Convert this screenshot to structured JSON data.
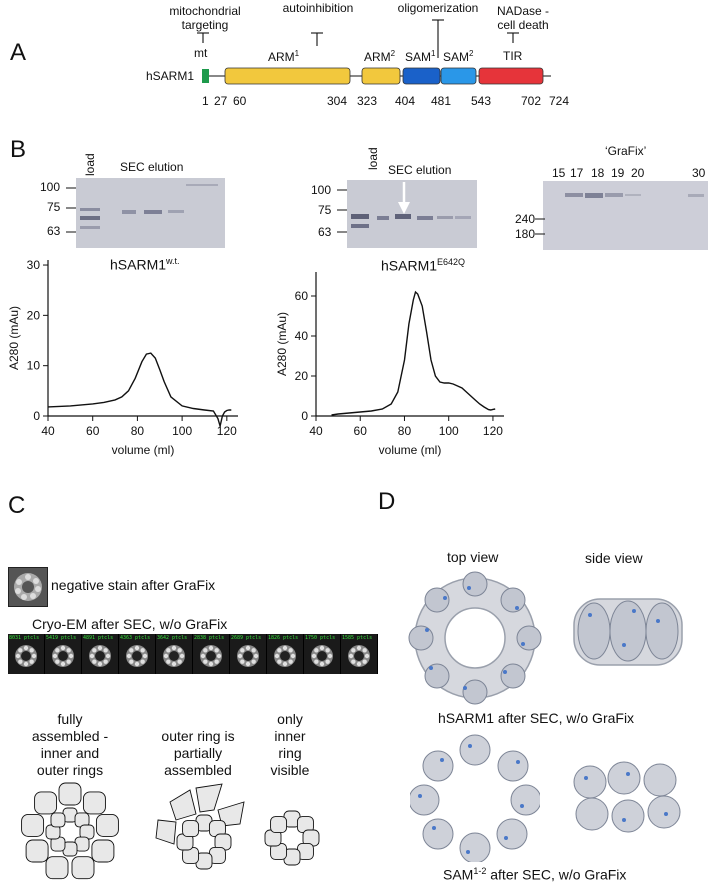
{
  "panels": {
    "A": "A",
    "B": "B",
    "C": "C",
    "D": "D"
  },
  "panelA": {
    "protein": "hSARM1",
    "functions": [
      {
        "label1": "mitochondrial",
        "label2": "targeting"
      },
      {
        "label1": "autoinhibition",
        "label2": ""
      },
      {
        "label1": "oligomerization",
        "label2": ""
      },
      {
        "label1": "NADase -",
        "label2": "cell death"
      }
    ],
    "domains": [
      {
        "base": "mt",
        "sup": "",
        "color": "#1e9a4c"
      },
      {
        "base": "ARM",
        "sup": "1",
        "color": "#f2c83d"
      },
      {
        "base": "ARM",
        "sup": "2",
        "color": "#f2c83d"
      },
      {
        "base": "SAM",
        "sup": "1",
        "color": "#1a61c9"
      },
      {
        "base": "SAM",
        "sup": "2",
        "color": "#2a97e8"
      },
      {
        "base": "TIR",
        "sup": "",
        "color": "#e6343a"
      }
    ],
    "residues": [
      "1",
      "27",
      "60",
      "304",
      "323",
      "404",
      "481",
      "543",
      "702",
      "724"
    ]
  },
  "panelB": {
    "gel1": {
      "load": "load",
      "elution": "SEC elution",
      "markers": [
        "100",
        "75",
        "63"
      ]
    },
    "gel2": {
      "load": "load",
      "elution": "SEC elution",
      "markers": [
        "100",
        "75",
        "63"
      ]
    },
    "gel3": {
      "title": "‘GraFix’",
      "lanes": [
        "15",
        "17",
        "18",
        "19",
        "20",
        "30"
      ],
      "markers": [
        "240",
        "180"
      ]
    },
    "chart1_title_base": "hSARM1",
    "chart1_title_sup": "w.t.",
    "chart2_title_base": "hSARM1",
    "chart2_title_sup": "E642Q"
  },
  "chart_data": [
    {
      "type": "line",
      "title": "hSARM1w.t.",
      "xlabel": "volume (ml)",
      "ylabel": "A280 (mAu)",
      "xlim": [
        40,
        125
      ],
      "ylim": [
        0,
        31
      ],
      "xticks": [
        "40",
        "60",
        "80",
        "100",
        "120"
      ],
      "yticks": [
        "0",
        "10",
        "20",
        "30"
      ],
      "series": [
        {
          "x": [
            40,
            45,
            50,
            55,
            60,
            65,
            70,
            73,
            76,
            79,
            82,
            84,
            86,
            88,
            90,
            92,
            95,
            100,
            105,
            110,
            114,
            116,
            117,
            118,
            119,
            120,
            121,
            122
          ],
          "y": [
            1.8,
            1.9,
            2.0,
            2.2,
            2.4,
            2.7,
            3.2,
            3.8,
            5.0,
            7.5,
            10.8,
            12.3,
            12.5,
            11.5,
            9.2,
            6.8,
            3.8,
            2.0,
            1.5,
            1.2,
            1.0,
            -0.5,
            -2.0,
            0.0,
            0.8,
            1.1,
            1.2,
            1.2
          ]
        }
      ]
    },
    {
      "type": "line",
      "title": "hSARM1E642Q",
      "xlabel": "volume (ml)",
      "ylabel": "A280 (mAu)",
      "xlim": [
        40,
        125
      ],
      "ylim": [
        0,
        72
      ],
      "xticks": [
        "40",
        "60",
        "80",
        "100",
        "120"
      ],
      "yticks": [
        "0",
        "20",
        "40",
        "60"
      ],
      "series": [
        {
          "x": [
            47,
            50,
            55,
            60,
            65,
            70,
            74,
            77,
            80,
            82,
            84,
            85,
            86,
            88,
            90,
            92,
            94,
            96,
            98,
            100,
            102,
            104,
            106,
            108,
            110,
            112,
            114,
            116,
            118,
            119,
            120,
            121
          ],
          "y": [
            0.5,
            1.0,
            1.5,
            2.0,
            2.5,
            3.5,
            6.0,
            12,
            28,
            46,
            58,
            62,
            61,
            55,
            42,
            28,
            20,
            17,
            16.5,
            16.5,
            16,
            15,
            14,
            12,
            10,
            8,
            6,
            4.5,
            3.2,
            3.0,
            3.3,
            3.5
          ]
        }
      ]
    }
  ],
  "panelC": {
    "neg_stain": "negative stain after GraFix",
    "cryo": "Cryo-EM after SEC, w/o GraFix",
    "class_counts": [
      "8031 ptcls",
      "5419 ptcls",
      "4891 ptcls",
      "4363 ptcls",
      "3642 ptcls",
      "2838 ptcls",
      "2689 ptcls",
      "1826 ptcls",
      "1750 ptcls",
      "1585 ptcls"
    ],
    "label_full_1": "fully",
    "label_full_2": "assembled -",
    "label_full_3": "inner and",
    "label_full_4": "outer rings",
    "label_part_1": "outer ring is",
    "label_part_2": "partially",
    "label_part_3": "assembled",
    "label_inner_1": "only",
    "label_inner_2": "inner",
    "label_inner_3": "ring",
    "label_inner_4": "visible"
  },
  "panelD": {
    "top": "top view",
    "side": "side view",
    "caption1": "hSARM1 after SEC, w/o GraFix",
    "caption2_base": "SAM",
    "caption2_sup": "1-2",
    "caption2_rest": " after SEC, w/o GraFix"
  }
}
